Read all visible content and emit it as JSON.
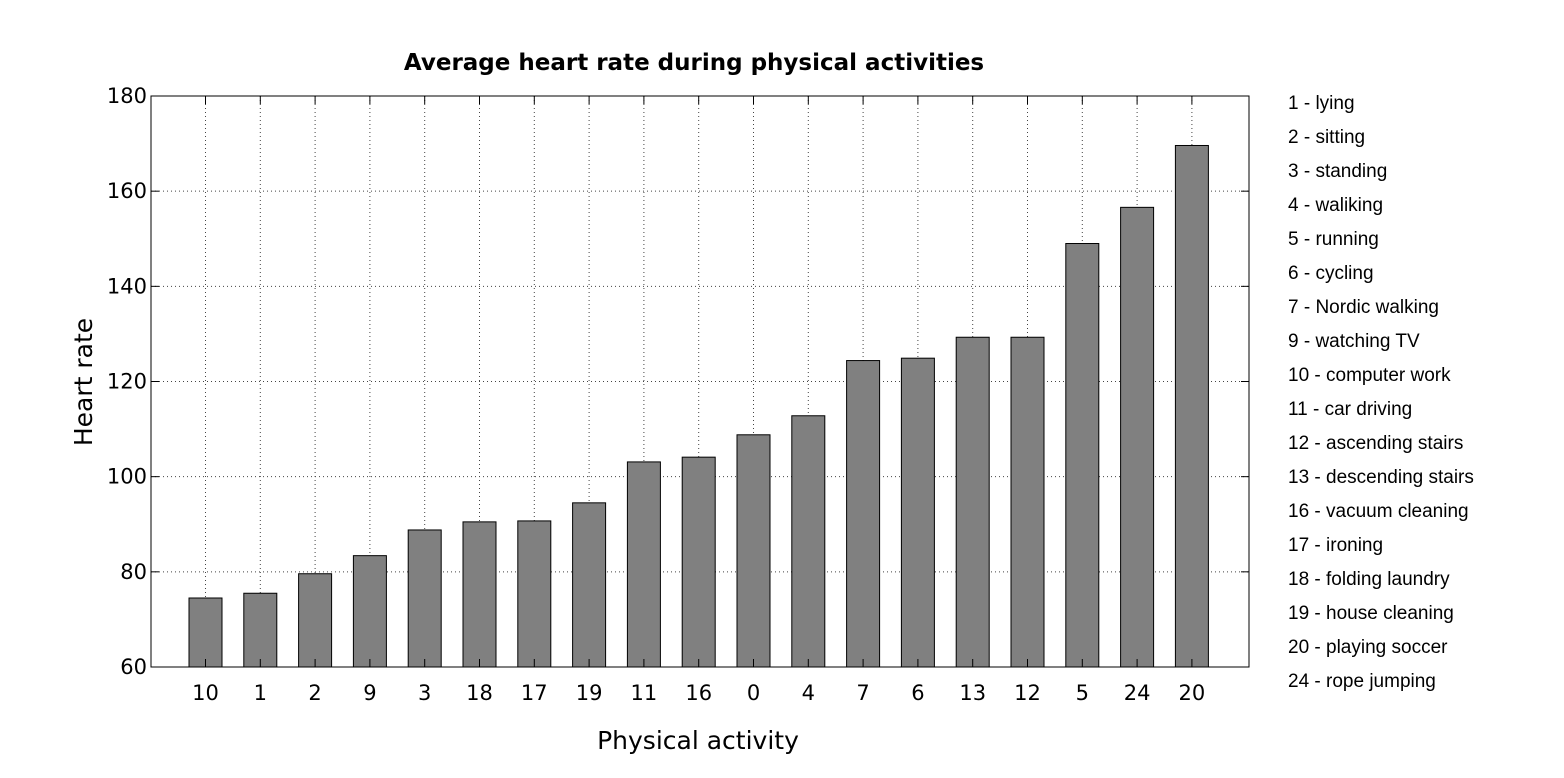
{
  "chart_data": {
    "type": "bar",
    "title": "Average heart rate during physical activities",
    "xlabel": "Physical activity",
    "ylabel": "Heart rate",
    "ylim": [
      60,
      180
    ],
    "yticks": [
      "60",
      "80",
      "100",
      "120",
      "140",
      "160",
      "180"
    ],
    "grid": true,
    "bar_color": "#808080",
    "categories": [
      "10",
      "1",
      "2",
      "9",
      "3",
      "18",
      "17",
      "19",
      "11",
      "16",
      "0",
      "4",
      "7",
      "6",
      "13",
      "12",
      "5",
      "24",
      "20"
    ],
    "values": [
      74.5,
      75.5,
      79.6,
      83.4,
      88.8,
      90.5,
      90.7,
      94.5,
      103.1,
      104.1,
      108.8,
      112.8,
      124.4,
      124.9,
      129.3,
      129.3,
      149.0,
      156.6,
      169.6
    ],
    "legend_position": "right",
    "legend": [
      "1 - lying",
      "2 - sitting",
      "3 - standing",
      "4 - waliking",
      "5 - running",
      "6 - cycling",
      "7 - Nordic walking",
      "9 - watching TV",
      "10 - computer work",
      "11 - car driving",
      "12 - ascending stairs",
      "13 - descending stairs",
      "16 - vacuum cleaning",
      "17 - ironing",
      "18 - folding laundry",
      "19 - house cleaning",
      "20 - playing soccer",
      "24 - rope jumping"
    ]
  }
}
